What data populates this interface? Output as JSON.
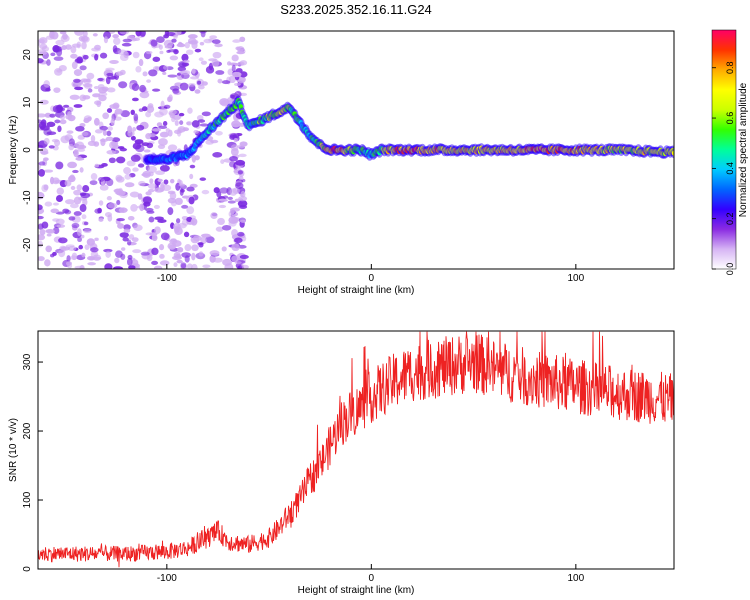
{
  "title": "S233.2025.352.16.11.G24",
  "chart_data": [
    {
      "type": "heatmap",
      "xlabel": "Height of straight line (km)",
      "ylabel": "Frequency (Hz)",
      "xlim": [
        -163,
        148
      ],
      "ylim": [
        -25,
        25
      ],
      "xticks": [
        -100,
        0,
        100
      ],
      "yticks": [
        -20,
        -10,
        0,
        10,
        20
      ],
      "colorbar": {
        "label": "Normalized spectral amplitude",
        "range": [
          0,
          0.95
        ],
        "ticks": [
          0.0,
          0.2,
          0.4,
          0.6,
          0.8
        ],
        "colors": [
          "#ffffff",
          "#d6b4f4",
          "#8a2be2",
          "#3300ff",
          "#0066ff",
          "#00ccff",
          "#00ff99",
          "#33ff00",
          "#ccff00",
          "#ffff00",
          "#ffaa00",
          "#ff3300",
          "#ff0066"
        ]
      },
      "ridge": {
        "x": [
          -110,
          -100,
          -90,
          -82,
          -75,
          -65,
          -60,
          -55,
          -50,
          -45,
          -40,
          -35,
          -30,
          -25,
          -20,
          -15,
          -10,
          -5,
          0,
          5,
          10,
          20,
          40,
          60,
          80,
          100,
          120,
          148
        ],
        "y": [
          -2,
          -2,
          -1,
          3,
          6,
          10,
          5,
          6,
          7,
          8,
          9,
          6,
          3,
          1,
          0,
          0,
          0,
          0,
          -1,
          0,
          0,
          0,
          0,
          0,
          0,
          0,
          0,
          -0.5
        ],
        "amplitude": [
          0.3,
          0.35,
          0.35,
          0.45,
          0.5,
          0.55,
          0.5,
          0.55,
          0.6,
          0.7,
          0.6,
          0.5,
          0.5,
          0.6,
          0.85,
          0.9,
          0.6,
          0.55,
          0.5,
          0.6,
          0.8,
          0.85,
          0.75,
          0.75,
          0.85,
          0.8,
          0.7,
          0.7
        ]
      }
    },
    {
      "type": "line",
      "xlabel": "Height of straight line (km)",
      "ylabel": "SNR (10 * v/v)",
      "xlim": [
        -163,
        148
      ],
      "ylim": [
        0,
        345
      ],
      "xticks": [
        -100,
        0,
        100
      ],
      "yticks": [
        0,
        100,
        200,
        300
      ],
      "color": "#ee2222",
      "envelope": {
        "x": [
          -163,
          -140,
          -120,
          -100,
          -90,
          -80,
          -75,
          -70,
          -60,
          -50,
          -45,
          -40,
          -35,
          -30,
          -25,
          -20,
          -15,
          -10,
          -5,
          0,
          10,
          20,
          30,
          40,
          50,
          60,
          80,
          100,
          120,
          148
        ],
        "y": [
          22,
          22,
          22,
          25,
          30,
          45,
          55,
          40,
          35,
          45,
          60,
          80,
          100,
          130,
          150,
          180,
          210,
          225,
          235,
          250,
          270,
          285,
          290,
          295,
          300,
          290,
          275,
          265,
          255,
          245
        ]
      },
      "noise_amplitude": 18
    }
  ]
}
